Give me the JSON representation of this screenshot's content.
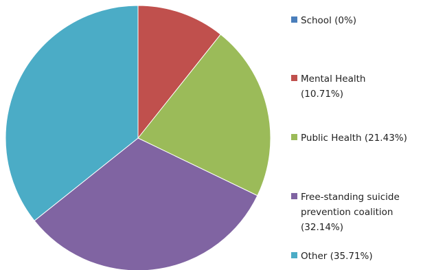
{
  "chart_data": {
    "type": "pie",
    "title": "",
    "legend_position": "right",
    "slices": [
      {
        "label": "School (0%)",
        "value": 0,
        "color": "#4a7ebb"
      },
      {
        "label": "Mental Health\n(10.71%)",
        "value": 10.71,
        "color": "#c0504d"
      },
      {
        "label": "Public Health (21.43%)",
        "value": 21.43,
        "color": "#9bbb59"
      },
      {
        "label": "Free-standing suicide\nprevention coalition\n(32.14%)",
        "value": 32.14,
        "color": "#8064a2"
      },
      {
        "label": "Other (35.71%)",
        "value": 35.71,
        "color": "#4bacc6"
      }
    ]
  }
}
